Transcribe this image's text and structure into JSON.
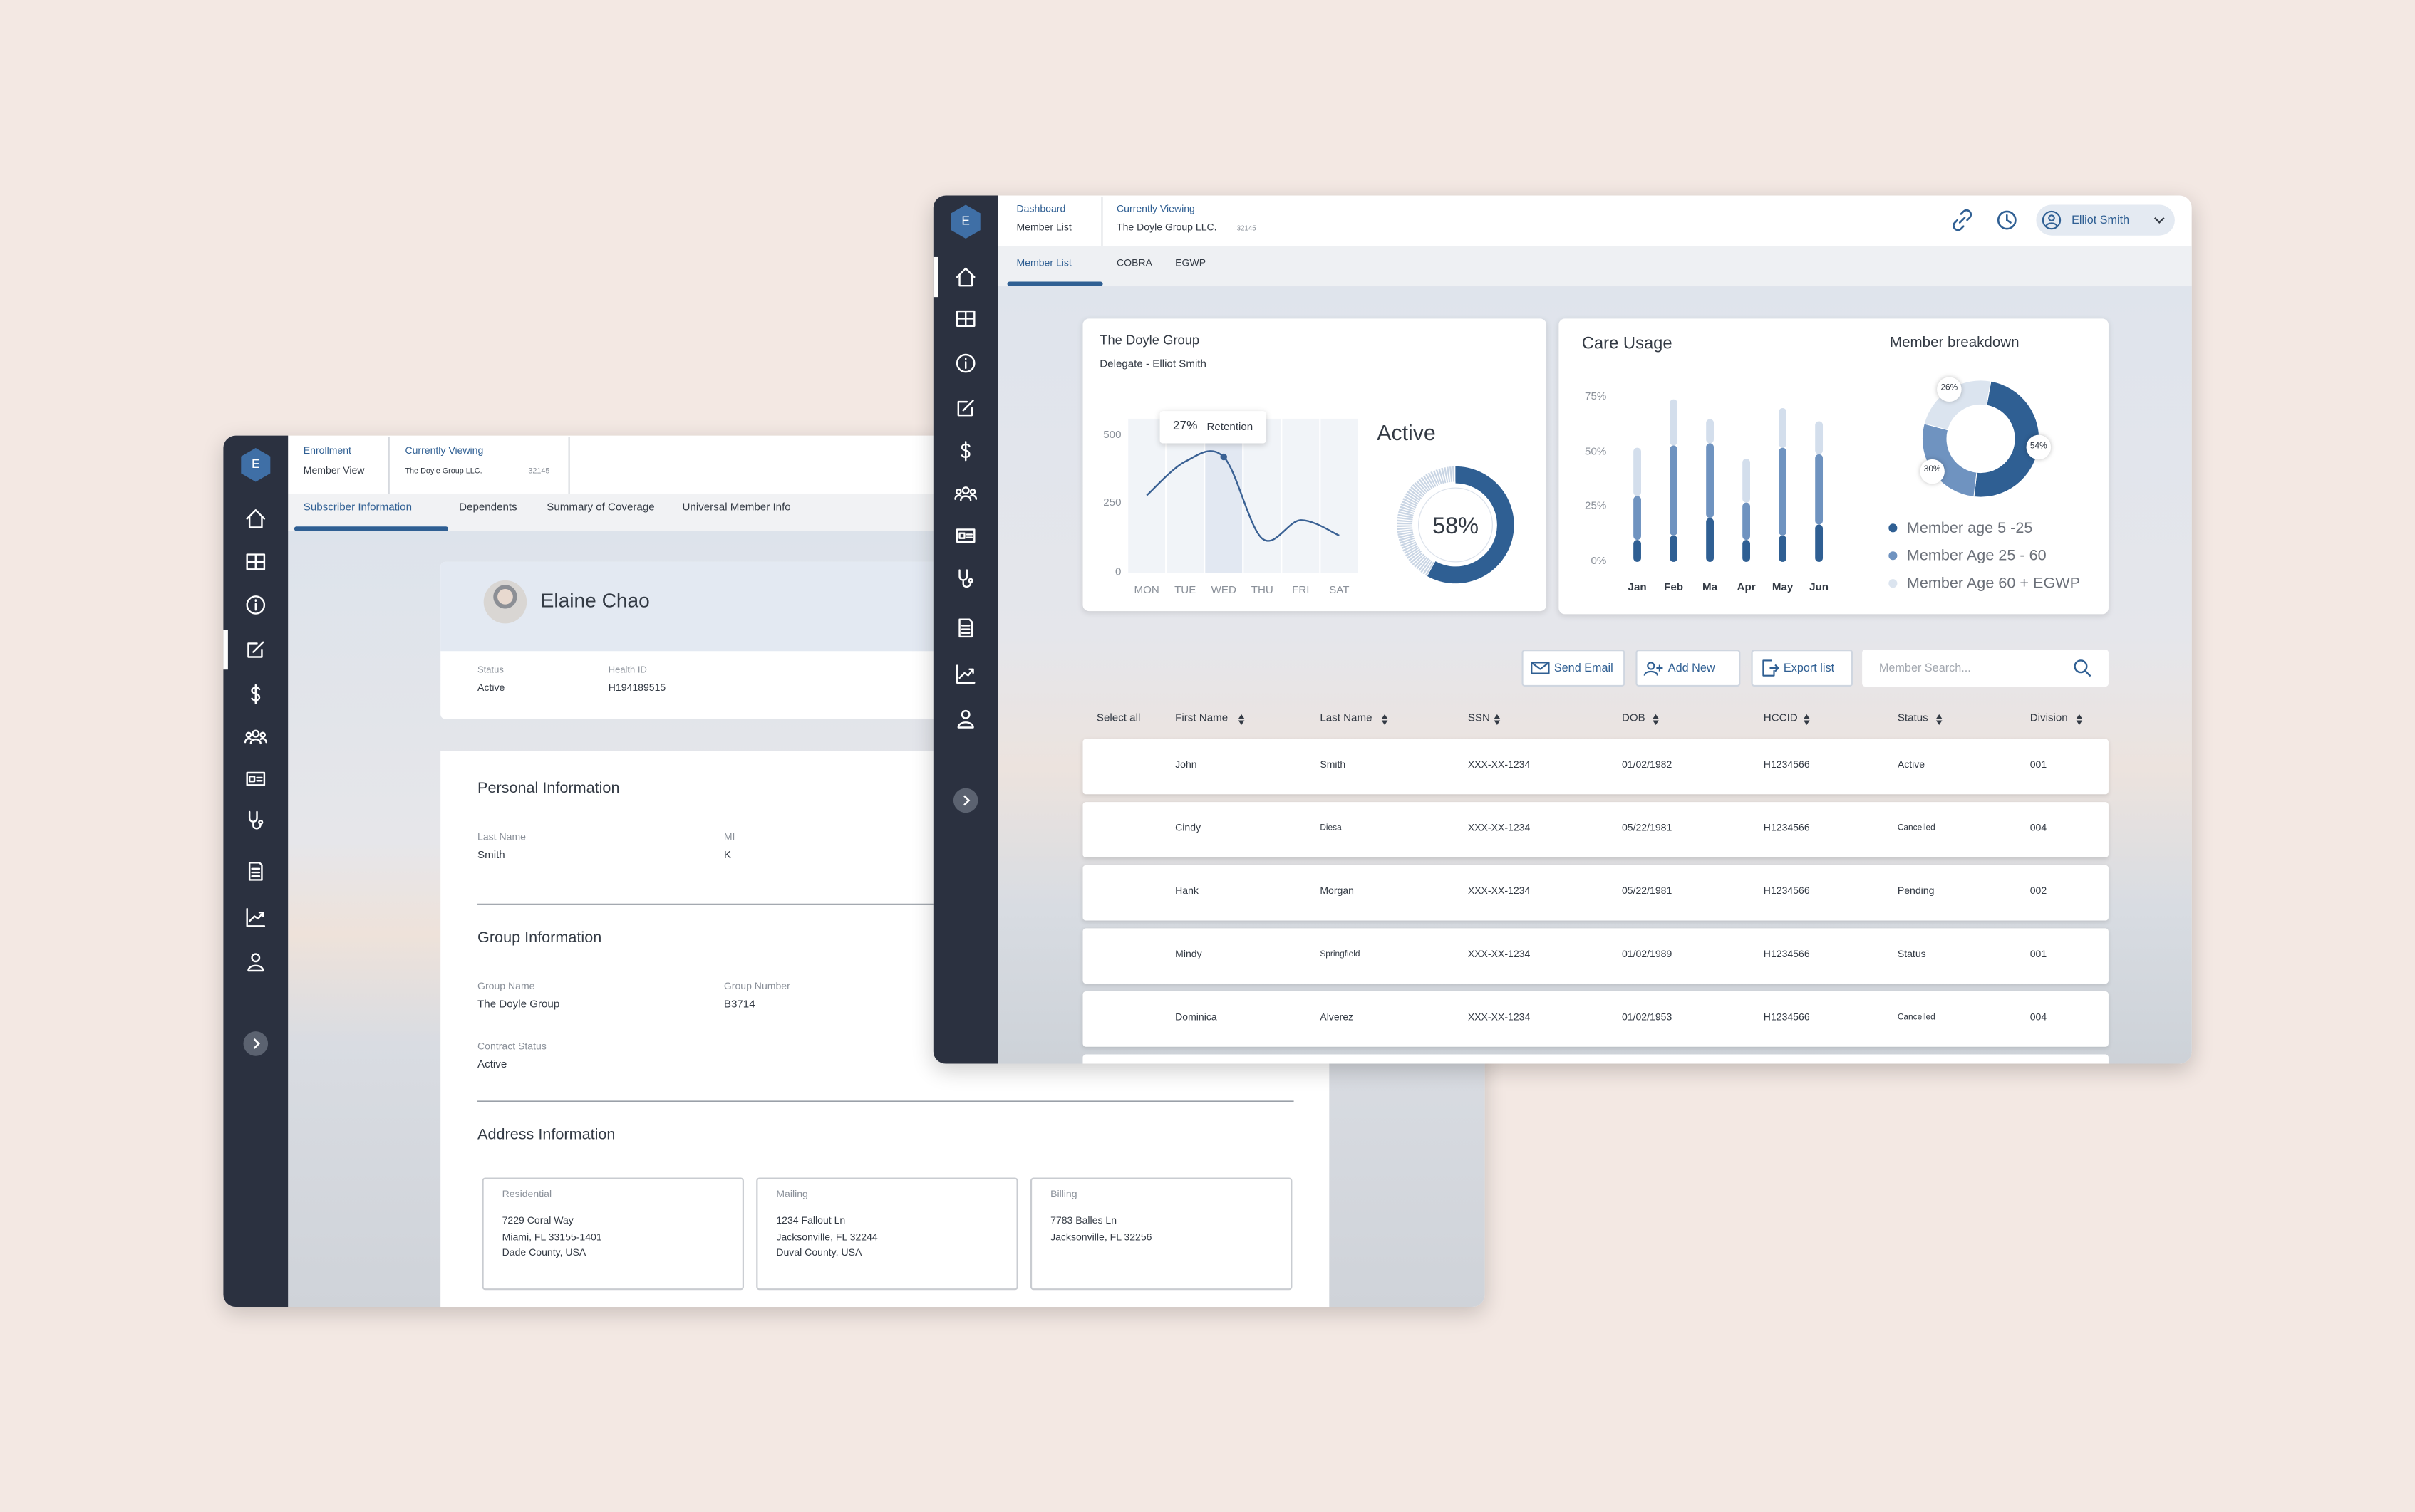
{
  "back_window": {
    "logo": "E",
    "breadcrumb": {
      "section": "Enrollment",
      "page": "Member View"
    },
    "viewing": {
      "label": "Currently Viewing",
      "name": "The Doyle Group LLC.",
      "id": "32145"
    },
    "tabs": [
      "Subscriber Information",
      "Dependents",
      "Summary of Coverage",
      "Universal Member Info"
    ],
    "profile": {
      "name": "Elaine Chao",
      "fields": [
        {
          "label": "Status",
          "value": "Active"
        },
        {
          "label": "Health ID",
          "value": "H194189515"
        }
      ]
    },
    "sections": [
      {
        "title": "Personal Information",
        "fields": [
          {
            "label": "Last Name",
            "value": "Smith"
          },
          {
            "label": "MI",
            "value": "K"
          }
        ]
      },
      {
        "title": "Group Information",
        "fields": [
          {
            "label": "Group Name",
            "value": "The Doyle Group"
          },
          {
            "label": "Group Number",
            "value": "B3714"
          },
          {
            "label": "Contract Status",
            "value": "Active"
          }
        ]
      },
      {
        "title": "Address Information",
        "addresses": [
          {
            "label": "Residential",
            "lines": [
              "7229 Coral Way",
              "Miami, FL 33155-1401",
              "Dade County, USA"
            ]
          },
          {
            "label": "Mailing",
            "lines": [
              "1234 Fallout Ln",
              "Jacksonville, FL 32244",
              "Duval County, USA"
            ]
          },
          {
            "label": "Billing",
            "lines": [
              "7783 Balles Ln",
              "Jacksonville, FL 32256"
            ]
          }
        ]
      }
    ]
  },
  "front_window": {
    "logo": "E",
    "breadcrumb": {
      "section": "Dashboard",
      "page": "Member List"
    },
    "viewing": {
      "label": "Currently Viewing",
      "name": "The Doyle Group LLC.",
      "id": "32145"
    },
    "user": "Elliot Smith",
    "tabs": [
      "Member List",
      "COBRA",
      "EGWP"
    ],
    "actions": [
      "Send Email",
      "Add New",
      "Export list"
    ],
    "search_placeholder": "Member Search...",
    "table": {
      "select_all": "Select all",
      "columns": [
        "First Name",
        "Last Name",
        "SSN",
        "DOB",
        "HCCID",
        "Status",
        "Division"
      ],
      "rows": [
        [
          "John",
          "Smith",
          "XXX-XX-1234",
          "01/02/1982",
          "H1234566",
          "Active",
          "001"
        ],
        [
          "Cindy",
          "Diesa",
          "XXX-XX-1234",
          "05/22/1981",
          "H1234566",
          "Cancelled",
          "004"
        ],
        [
          "Hank",
          "Morgan",
          "XXX-XX-1234",
          "05/22/1981",
          "H1234566",
          "Pending",
          "002"
        ],
        [
          "Mindy",
          "Springfield",
          "XXX-XX-1234",
          "01/02/1989",
          "H1234566",
          "Status",
          "001"
        ],
        [
          "Dominica",
          "Alverez",
          "XXX-XX-1234",
          "01/02/1953",
          "H1234566",
          "Cancelled",
          "004"
        ]
      ]
    }
  },
  "chart_data": [
    {
      "type": "line",
      "title": "The Doyle Group",
      "subtitle": "Delegate - Elliot Smith",
      "categories": [
        "MON",
        "TUE",
        "WED",
        "THU",
        "FRI",
        "SAT"
      ],
      "values": [
        281,
        404,
        421,
        124,
        191,
        135
      ],
      "color": "#3a6194",
      "ylim": [
        0,
        560
      ],
      "yticks": [
        0,
        250,
        500
      ],
      "annotation": {
        "category": "WED",
        "label": "27%",
        "text": "Retention"
      }
    },
    {
      "type": "donut",
      "title": "Active",
      "values": [
        58
      ],
      "value_labels": [
        "58%"
      ],
      "color": "#2f5f93",
      "track_color": "#c9d5e4"
    },
    {
      "type": "bar",
      "stacked": true,
      "title": "Care Usage",
      "categories": [
        "Jan",
        "Feb",
        "Ma",
        "Apr",
        "May",
        "Jun"
      ],
      "ylim": [
        0,
        75
      ],
      "yticks": [
        {
          "value": 0,
          "label": "0%"
        },
        {
          "value": 25,
          "label": "25%"
        },
        {
          "value": 50,
          "label": "50%"
        },
        {
          "value": 75,
          "label": "75%"
        }
      ],
      "series": [
        {
          "color": "#2f5f93",
          "values": [
            10,
            12,
            20,
            10,
            12,
            17
          ]
        },
        {
          "color": "#6f93c0",
          "values": [
            20,
            41,
            34,
            17,
            40,
            32
          ]
        },
        {
          "color": "#d3deec",
          "values": [
            22,
            21,
            11,
            20,
            18,
            15
          ]
        }
      ]
    },
    {
      "type": "donut",
      "title": "Member breakdown",
      "categories": [
        "Member age 5 -25",
        "Member Age 25 - 60",
        "Member Age 60 + EGWP"
      ],
      "values": [
        54,
        30,
        26
      ],
      "value_labels": [
        "54%",
        "30%",
        "26%"
      ],
      "colors": [
        "#2f5f93",
        "#6f93c0",
        "#dbe4ef"
      ]
    }
  ]
}
